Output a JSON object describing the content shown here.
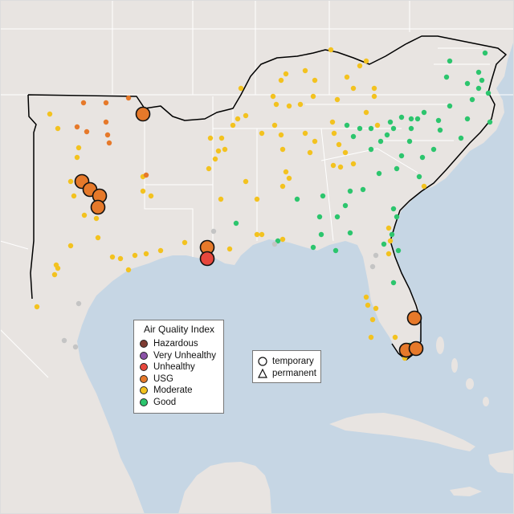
{
  "colors": {
    "ocean": "#c6d6e4",
    "land": "#ebe6e3",
    "land_us": "#e6e2df",
    "border": "#ffffff",
    "outline": "#000000",
    "hazardous": "#7e3b32",
    "very_unhealthy": "#8b52a8",
    "unhealthy": "#e7473d",
    "usg": "#e6792a",
    "moderate": "#f3c21f",
    "good": "#2cc56d",
    "inactive": "#c4c4c4"
  },
  "legend": {
    "title": "Air Quality Index",
    "items": [
      {
        "label": "Hazardous",
        "color": "#7e3b32"
      },
      {
        "label": "Very Unhealthy",
        "color": "#8b52a8"
      },
      {
        "label": "Unhealthy",
        "color": "#e7473d"
      },
      {
        "label": "USG",
        "color": "#e6792a"
      },
      {
        "label": "Moderate",
        "color": "#f3c21f"
      },
      {
        "label": "Good",
        "color": "#2cc56d"
      }
    ]
  },
  "shape_legend": {
    "items": [
      {
        "label": "temporary",
        "icon": "circle-icon"
      },
      {
        "label": "permanent",
        "icon": "triangle-icon"
      }
    ]
  }
}
